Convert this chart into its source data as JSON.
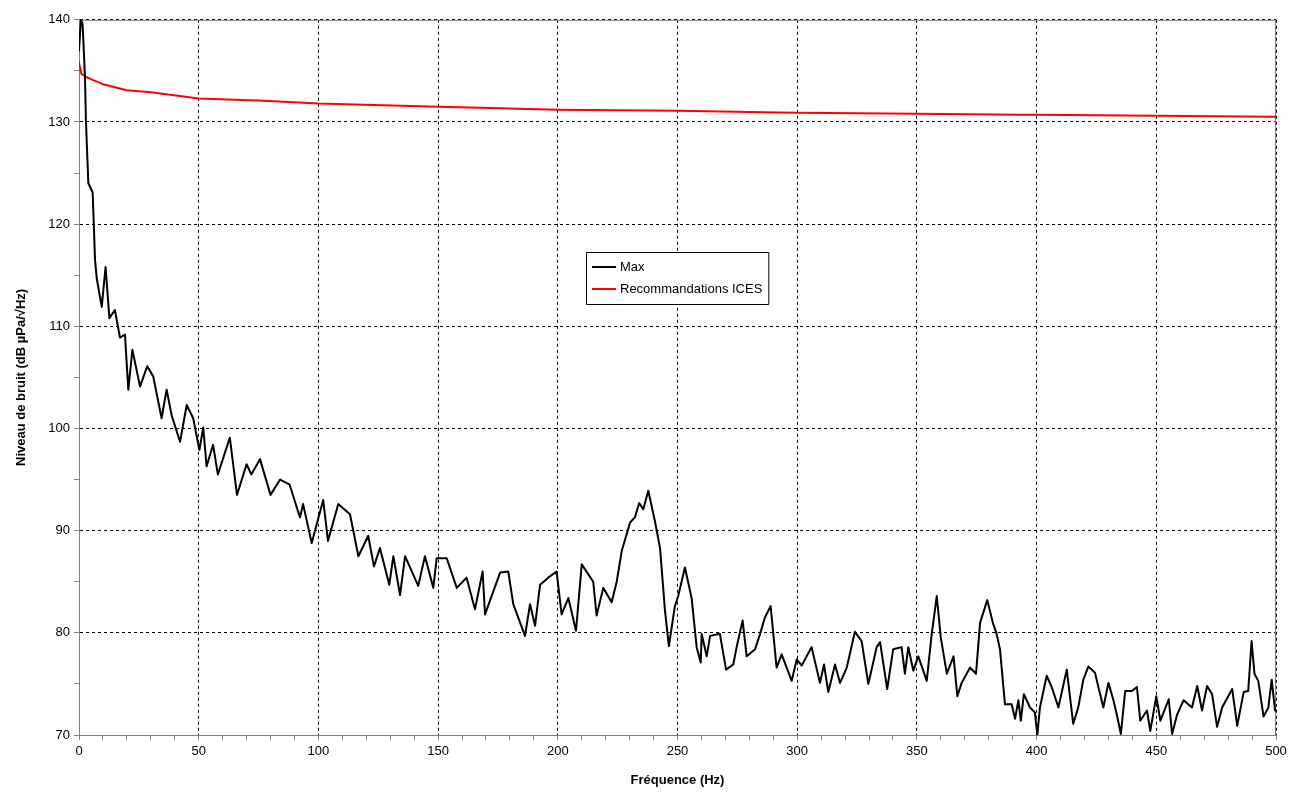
{
  "chart_data": {
    "type": "line",
    "xlabel": "Fréquence (Hz)",
    "ylabel": "Niveau de bruit (dB µPa/√Hz)",
    "xlim": [
      0,
      500
    ],
    "ylim": [
      70,
      140
    ],
    "xticks": [
      0,
      {
        "value": 10,
        "label": null
      },
      {
        "value": 20,
        "label": null
      },
      {
        "value": 30,
        "label": null
      },
      {
        "value": 40,
        "label": null
      },
      50,
      {
        "value": 60,
        "label": null
      },
      {
        "value": 70,
        "label": null
      },
      {
        "value": 80,
        "label": null
      },
      {
        "value": 90,
        "label": null
      },
      100,
      {
        "value": 110,
        "label": null
      },
      {
        "value": 120,
        "label": null
      },
      {
        "value": 130,
        "label": null
      },
      {
        "value": 140,
        "label": null
      },
      150,
      {
        "value": 160,
        "label": null
      },
      {
        "value": 170,
        "label": null
      },
      {
        "value": 180,
        "label": null
      },
      {
        "value": 190,
        "label": null
      },
      200,
      {
        "value": 210,
        "label": null
      },
      {
        "value": 220,
        "label": null
      },
      {
        "value": 230,
        "label": null
      },
      {
        "value": 240,
        "label": null
      },
      250,
      {
        "value": 260,
        "label": null
      },
      {
        "value": 270,
        "label": null
      },
      {
        "value": 280,
        "label": null
      },
      {
        "value": 290,
        "label": null
      },
      300,
      {
        "value": 310,
        "label": null
      },
      {
        "value": 320,
        "label": null
      },
      {
        "value": 330,
        "label": null
      },
      {
        "value": 340,
        "label": null
      },
      350,
      {
        "value": 360,
        "label": null
      },
      {
        "value": 370,
        "label": null
      },
      {
        "value": 380,
        "label": null
      },
      {
        "value": 390,
        "label": null
      },
      400,
      {
        "value": 410,
        "label": null
      },
      {
        "value": 420,
        "label": null
      },
      {
        "value": 430,
        "label": null
      },
      {
        "value": 440,
        "label": null
      },
      450,
      {
        "value": 460,
        "label": null
      },
      {
        "value": 470,
        "label": null
      },
      {
        "value": 480,
        "label": null
      },
      {
        "value": 490,
        "label": null
      },
      500
    ],
    "yticks": [
      70,
      {
        "value": 75,
        "label": null
      },
      80,
      {
        "value": 85,
        "label": null
      },
      90,
      {
        "value": 95,
        "label": null
      },
      100,
      {
        "value": 105,
        "label": null
      },
      110,
      {
        "value": 115,
        "label": null
      },
      120,
      {
        "value": 125,
        "label": null
      },
      130,
      {
        "value": 135,
        "label": null
      },
      140
    ],
    "grid": true,
    "legend": "center",
    "marker": "none",
    "series": [
      {
        "name": "Max",
        "color": "#000000",
        "x": [
          0,
          0.8,
          1.5,
          2.5,
          2.9,
          3.9,
          5.7,
          6.7,
          7.4,
          9.5,
          11.1,
          12.7,
          15,
          17.1,
          19.2,
          20.6,
          22.3,
          25.5,
          28.5,
          31,
          34.5,
          36.6,
          38.7,
          42.2,
          45,
          47.7,
          50.3,
          51.9,
          53.3,
          56,
          58,
          63,
          66,
          70,
          72,
          75.6,
          80,
          84,
          88,
          90,
          92.3,
          93.6,
          97.2,
          102,
          104,
          108.3,
          113.2,
          116.7,
          120.8,
          123.2,
          125.7,
          129.6,
          131.3,
          134.1,
          136.2,
          141.7,
          144.5,
          148,
          149.4,
          153.6,
          157.8,
          161.9,
          165.4,
          168.6,
          169.6,
          175.9,
          179.3,
          181.4,
          186.3,
          188.4,
          190.5,
          192.6,
          196,
          199.5,
          201.6,
          204.4,
          207.6,
          210,
          214.8,
          216.2,
          219,
          222.5,
          224.6,
          226.7,
          230.2,
          232.2,
          234,
          235.7,
          237.8,
          240.6,
          242.7,
          244.8,
          246.4,
          248.9,
          250.3,
          253.1,
          255.9,
          258,
          259.7,
          260.1,
          262.2,
          263.6,
          267.7,
          270.3,
          273.3,
          274.7,
          277.2,
          278.9,
          282.4,
          284.5,
          286.5,
          288.9,
          291.4,
          293.5,
          297.7,
          299.8,
          301.9,
          306,
          309.5,
          311.2,
          313,
          315.8,
          317.9,
          320.7,
          324.1,
          326.9,
          329.7,
          333.2,
          334.6,
          337.6,
          340.1,
          343.6,
          345,
          346.4,
          348.5,
          350.6,
          354.1,
          356.2,
          358.3,
          360,
          362.5,
          365.3,
          366.9,
          368.7,
          372.2,
          374.7,
          376.4,
          379.4,
          381.7,
          383.3,
          384.7,
          386.8,
          389.6,
          391,
          392.4,
          393.4,
          394.7,
          397.2,
          399.3,
          400.3,
          401.4,
          404.2,
          406.3,
          409.1,
          412.6,
          415.3,
          417.4,
          419.5,
          421.6,
          424.4,
          425.8,
          427.9,
          430,
          432.1,
          433.5,
          435.2,
          437,
          439.8,
          441.9,
          443.3,
          446.1,
          447.5,
          450,
          451.7,
          455.2,
          456.6,
          458.7,
          461.4,
          464.9,
          467.1,
          469.1,
          471.2,
          473.3,
          475.4,
          477.5,
          481.7,
          483.8,
          486.5,
          488.4,
          489.8,
          491,
          492.6,
          494.8,
          496.8,
          498.2,
          499.6
        ],
        "values": [
          137,
          140,
          139.6,
          134.4,
          130.1,
          124,
          123.1,
          116.5,
          114.7,
          111.9,
          115.8,
          110.8,
          111.6,
          108.9,
          109.2,
          103.8,
          107.7,
          104.1,
          106.1,
          105.1,
          101,
          103.8,
          101.3,
          98.7,
          102.3,
          101,
          97.9,
          100.1,
          96.3,
          98.4,
          95.5,
          99.1,
          93.5,
          96.5,
          95.5,
          97,
          93.5,
          95,
          94.5,
          93,
          91.3,
          92.6,
          88.8,
          93,
          89,
          92.6,
          91.6,
          87.5,
          89.5,
          86.5,
          88.3,
          84.7,
          87.5,
          83.7,
          87.5,
          84.6,
          87.5,
          84.4,
          87.3,
          87.3,
          84.4,
          85.4,
          82.3,
          86,
          81.8,
          85.9,
          86,
          82.8,
          79.7,
          82.8,
          80.7,
          84.7,
          85.4,
          86,
          81.8,
          83.4,
          80.2,
          86.7,
          85,
          81.7,
          84.4,
          83,
          85,
          88,
          90.8,
          91.3,
          92.7,
          92.1,
          93.9,
          90.9,
          88.3,
          82.1,
          78.7,
          82.6,
          83.6,
          86.4,
          83.4,
          78.6,
          77.1,
          79.9,
          77.7,
          79.7,
          79.9,
          76.4,
          76.9,
          78.6,
          81.2,
          77.7,
          78.4,
          79.9,
          81.5,
          82.6,
          76.6,
          77.9,
          75.3,
          77.4,
          76.8,
          78.6,
          75.1,
          76.9,
          74.2,
          76.9,
          75.1,
          76.6,
          80.1,
          79.2,
          75,
          78.6,
          79.1,
          74.5,
          78.4,
          78.6,
          76,
          78.6,
          76.3,
          77.7,
          75.3,
          79.9,
          83.6,
          79.5,
          76,
          77.7,
          73.8,
          75.1,
          76.6,
          76,
          81,
          83.2,
          81,
          79.9,
          78.4,
          73,
          73,
          71.6,
          73.4,
          71.4,
          74,
          72.7,
          72.2,
          70,
          72.7,
          75.8,
          74.7,
          72.7,
          76.4,
          71.1,
          72.7,
          75.4,
          76.7,
          76.1,
          74.7,
          72.7,
          75.1,
          73.4,
          72,
          70.1,
          74.3,
          74.3,
          74.7,
          71.4,
          72.4,
          70.4,
          73.8,
          71.4,
          73.5,
          70.1,
          72,
          73.4,
          72.7,
          74.8,
          72.4,
          74.8,
          74,
          70.8,
          72.7,
          74.5,
          70.9,
          74.2,
          74.3,
          79.2,
          76,
          75.3,
          71.8,
          72.7,
          75.4,
          72.4
        ]
      },
      {
        "name": "Recommandations ICES",
        "color": "#ff0000",
        "x": [
          0,
          1,
          3,
          5,
          10,
          20,
          30,
          50,
          75,
          100,
          150,
          200,
          250,
          300,
          350,
          400,
          450,
          500
        ],
        "values": [
          135.8,
          134.7,
          134.4,
          134.2,
          133.7,
          133.1,
          132.9,
          132.3,
          132.1,
          131.8,
          131.5,
          131.2,
          131.1,
          130.9,
          130.8,
          130.7,
          130.6,
          130.5
        ]
      }
    ]
  }
}
